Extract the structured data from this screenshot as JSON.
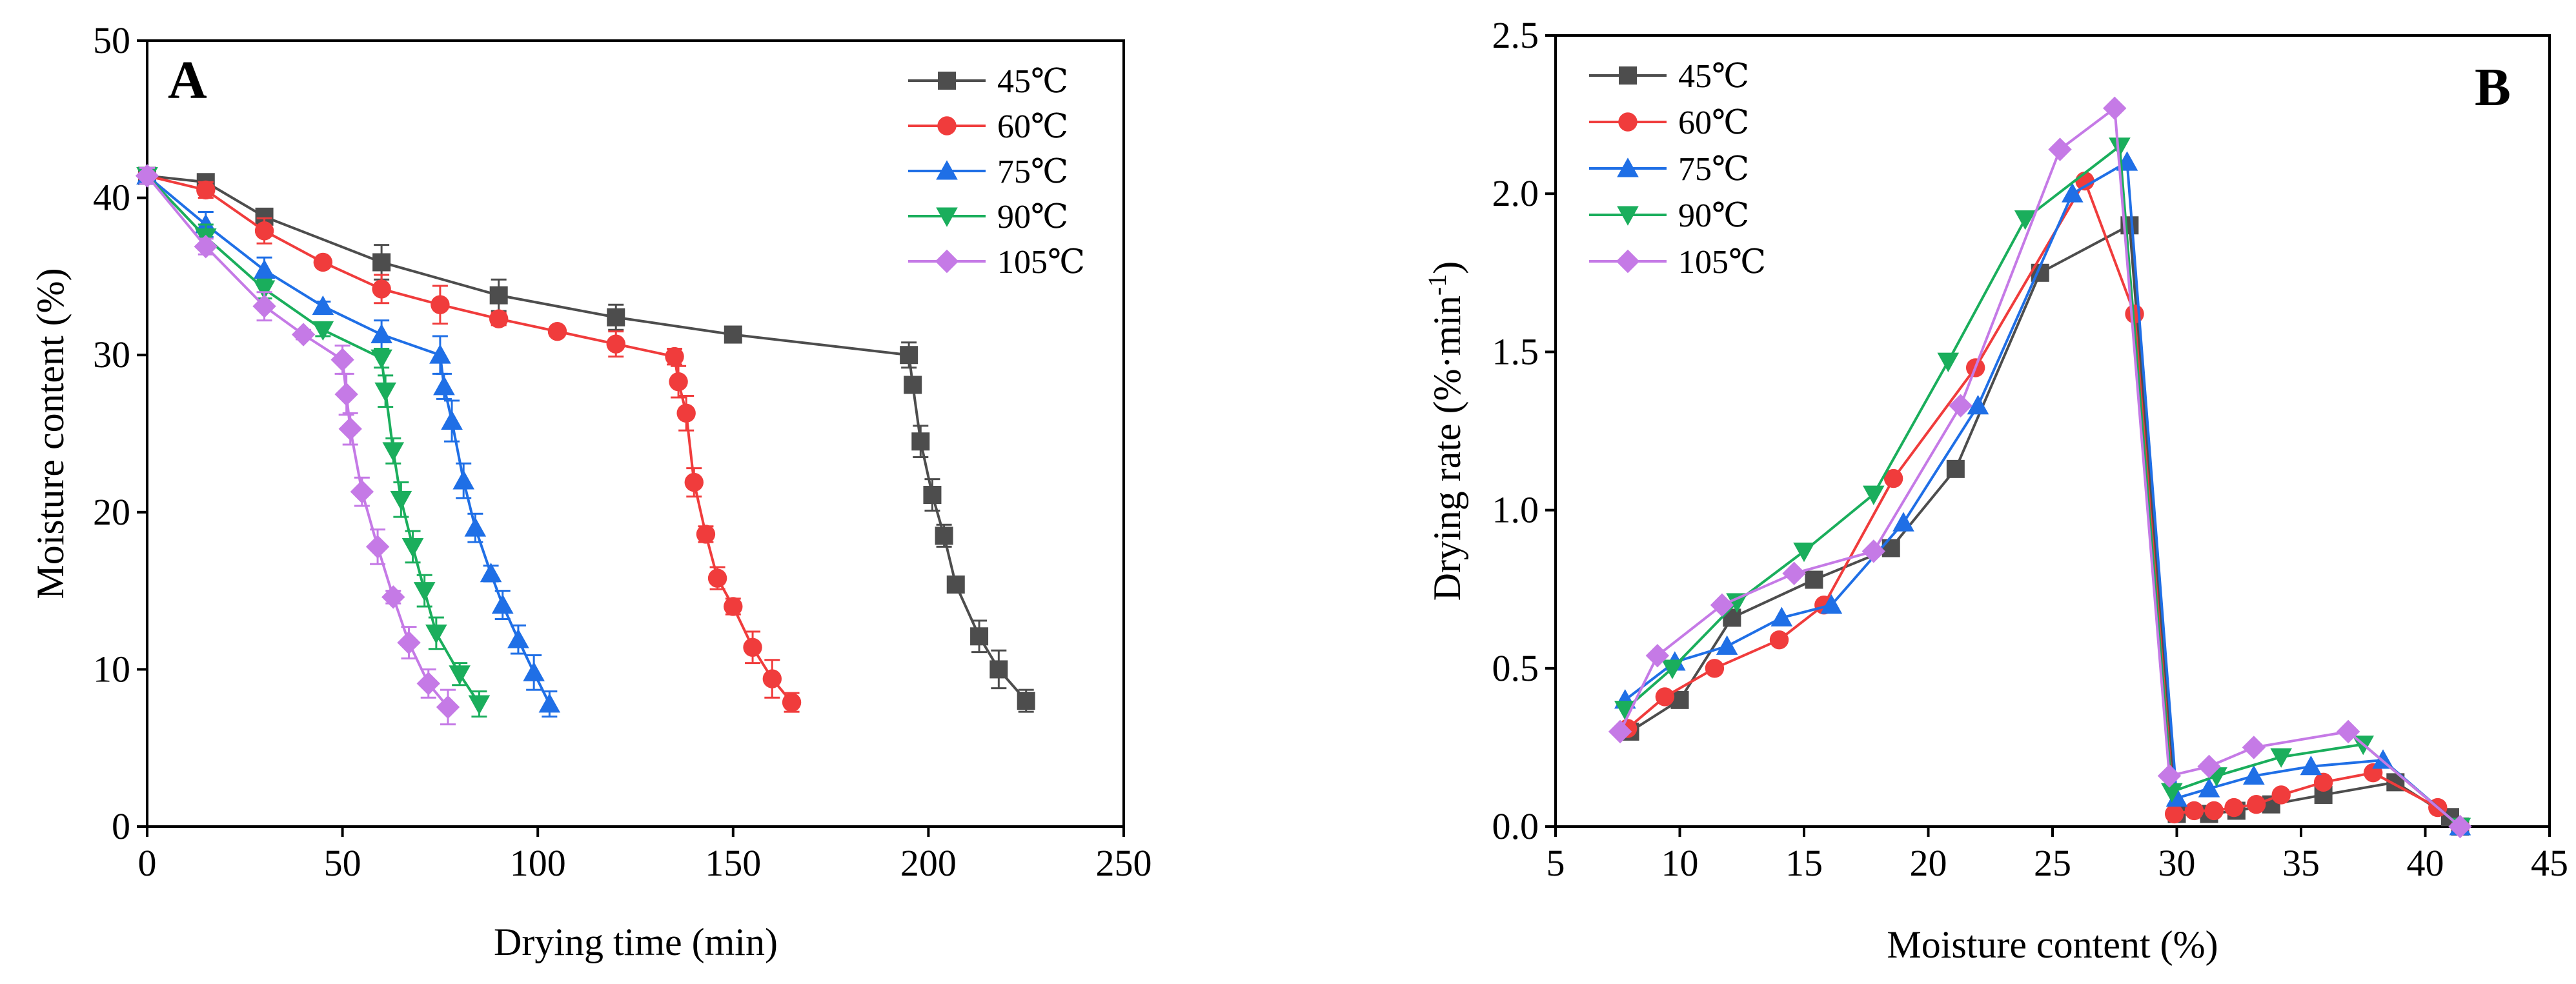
{
  "chart_data": [
    {
      "panel": "A",
      "type": "line",
      "xlabel": "Drying time (min)",
      "ylabel": "Moisture content (%)",
      "xlim": [
        0,
        250
      ],
      "ylim": [
        0,
        50
      ],
      "xticks": [
        0,
        50,
        100,
        150,
        200,
        250
      ],
      "yticks": [
        0,
        10,
        20,
        30,
        40,
        50
      ],
      "grid": false,
      "legend_position": "top-right",
      "series": [
        {
          "name": "45℃",
          "color": "#4d4d4d",
          "marker": "square",
          "x": [
            0,
            15,
            30,
            60,
            90,
            120,
            150,
            195,
            196,
            198,
            201,
            204,
            207,
            213,
            218,
            225
          ],
          "y": [
            41.4,
            41.0,
            38.8,
            35.9,
            33.8,
            32.4,
            31.3,
            30.0,
            28.1,
            24.5,
            21.1,
            18.5,
            15.4,
            12.1,
            10.0,
            8.0
          ],
          "err": [
            0.5,
            0.5,
            0.4,
            1.1,
            1.0,
            0.8,
            0.3,
            0.8,
            0.4,
            1.0,
            1.0,
            0.7,
            0.5,
            1.0,
            1.2,
            0.7
          ]
        },
        {
          "name": "60℃",
          "color": "#f03c3c",
          "marker": "circle",
          "x": [
            0,
            15,
            30,
            45,
            60,
            75,
            90,
            105,
            120,
            135,
            136,
            138,
            140,
            143,
            146,
            150,
            155,
            160,
            165
          ],
          "y": [
            41.4,
            40.5,
            37.9,
            35.9,
            34.2,
            33.2,
            32.3,
            31.5,
            30.7,
            29.9,
            28.3,
            26.3,
            21.9,
            18.6,
            15.8,
            14.0,
            11.4,
            9.4,
            7.9
          ],
          "err": [
            0.5,
            0.5,
            0.8,
            0.3,
            0.9,
            1.2,
            0.4,
            0.3,
            0.8,
            0.5,
            1.0,
            1.1,
            0.9,
            0.5,
            0.7,
            0.5,
            1.0,
            1.2,
            0.6
          ]
        },
        {
          "name": "75℃",
          "color": "#1f6fe6",
          "marker": "triangle-up",
          "x": [
            0,
            15,
            30,
            45,
            60,
            75,
            76,
            78,
            81,
            84,
            88,
            91,
            95,
            99,
            103
          ],
          "y": [
            41.4,
            38.3,
            35.4,
            33.1,
            31.3,
            30.0,
            28.0,
            25.8,
            22.0,
            19.0,
            16.1,
            14.1,
            11.9,
            9.8,
            7.8
          ],
          "err": [
            0.5,
            0.8,
            0.8,
            0.3,
            0.9,
            1.2,
            0.8,
            1.3,
            1.1,
            0.9,
            0.5,
            0.9,
            0.9,
            1.1,
            0.8
          ]
        },
        {
          "name": "90℃",
          "color": "#1aae5c",
          "marker": "triangle-down",
          "x": [
            0,
            15,
            30,
            45,
            60,
            61,
            63,
            65,
            68,
            71,
            74,
            80,
            85
          ],
          "y": [
            41.4,
            37.5,
            34.2,
            31.6,
            29.8,
            27.7,
            23.9,
            20.8,
            17.8,
            15.0,
            12.3,
            9.7,
            7.8
          ],
          "err": [
            0.5,
            0.8,
            0.6,
            0.4,
            0.6,
            1.0,
            0.8,
            1.1,
            1.0,
            1.0,
            1.0,
            0.7,
            0.8
          ]
        },
        {
          "name": "105℃",
          "color": "#c57ae6",
          "marker": "diamond",
          "x": [
            0,
            15,
            30,
            40,
            50,
            51,
            52,
            55,
            59,
            63,
            67,
            72,
            77
          ],
          "y": [
            41.4,
            36.9,
            33.1,
            31.3,
            29.7,
            27.5,
            25.3,
            21.3,
            17.8,
            14.6,
            11.7,
            9.1,
            7.6
          ],
          "err": [
            0.5,
            0.5,
            0.9,
            0.3,
            0.9,
            1.3,
            1.0,
            0.9,
            1.1,
            0.4,
            1.0,
            0.9,
            1.1
          ]
        }
      ],
      "annotations": [
        "A"
      ]
    },
    {
      "panel": "B",
      "type": "line",
      "xlabel": "Moisture content (%)",
      "ylabel_main": "Drying rate (%·min",
      "ylabel_sup": "-1",
      "ylabel_close": ")",
      "xlim": [
        5,
        45
      ],
      "ylim": [
        0,
        2.5
      ],
      "xticks": [
        5,
        10,
        15,
        20,
        25,
        30,
        35,
        40,
        45
      ],
      "yticks": [
        0.0,
        0.5,
        1.0,
        1.5,
        2.0,
        2.5
      ],
      "ytick_labels": [
        "0.0",
        "0.5",
        "1.0",
        "1.5",
        "2.0",
        "2.5"
      ],
      "grid": false,
      "legend_position": "top-left",
      "series": [
        {
          "name": "45℃",
          "color": "#4d4d4d",
          "marker": "square",
          "x": [
            8.0,
            10.0,
            12.1,
            15.4,
            18.5,
            21.1,
            24.5,
            28.1,
            30.0,
            31.3,
            32.4,
            33.8,
            35.9,
            38.8,
            41.0,
            41.4
          ],
          "y": [
            0.3,
            0.4,
            0.66,
            0.78,
            0.88,
            1.13,
            1.75,
            1.9,
            0.04,
            0.04,
            0.05,
            0.07,
            0.1,
            0.14,
            0.03,
            0.0
          ]
        },
        {
          "name": "60℃",
          "color": "#f03c3c",
          "marker": "circle",
          "x": [
            7.9,
            9.4,
            11.4,
            14.0,
            15.8,
            18.6,
            21.9,
            26.3,
            28.3,
            29.9,
            30.7,
            31.5,
            32.3,
            33.2,
            34.2,
            35.9,
            37.9,
            40.5,
            41.4
          ],
          "y": [
            0.31,
            0.41,
            0.5,
            0.59,
            0.7,
            1.1,
            1.45,
            2.04,
            1.62,
            0.04,
            0.05,
            0.05,
            0.06,
            0.07,
            0.1,
            0.14,
            0.17,
            0.06,
            0.0
          ]
        },
        {
          "name": "75℃",
          "color": "#1f6fe6",
          "marker": "triangle-up",
          "x": [
            7.8,
            9.8,
            11.9,
            14.1,
            16.1,
            19.0,
            22.0,
            25.8,
            28.0,
            30.0,
            31.3,
            33.1,
            35.4,
            38.3,
            41.4
          ],
          "y": [
            0.4,
            0.52,
            0.57,
            0.66,
            0.7,
            0.96,
            1.33,
            2.0,
            2.1,
            0.09,
            0.12,
            0.16,
            0.19,
            0.21,
            0.0
          ]
        },
        {
          "name": "90℃",
          "color": "#1aae5c",
          "marker": "triangle-down",
          "x": [
            7.8,
            9.7,
            12.3,
            15.0,
            17.8,
            20.8,
            23.9,
            27.7,
            29.8,
            31.6,
            34.2,
            37.5,
            41.4
          ],
          "y": [
            0.37,
            0.5,
            0.71,
            0.87,
            1.05,
            1.47,
            1.92,
            2.15,
            0.11,
            0.16,
            0.22,
            0.26,
            0.0
          ]
        },
        {
          "name": "105℃",
          "color": "#c57ae6",
          "marker": "diamond",
          "x": [
            7.6,
            9.1,
            11.7,
            14.6,
            17.8,
            21.3,
            25.3,
            27.5,
            29.7,
            31.3,
            33.1,
            36.9,
            41.4
          ],
          "y": [
            0.3,
            0.54,
            0.7,
            0.8,
            0.87,
            1.33,
            2.14,
            2.27,
            0.16,
            0.19,
            0.25,
            0.3,
            0.0
          ]
        }
      ],
      "annotations": [
        "B"
      ]
    }
  ]
}
